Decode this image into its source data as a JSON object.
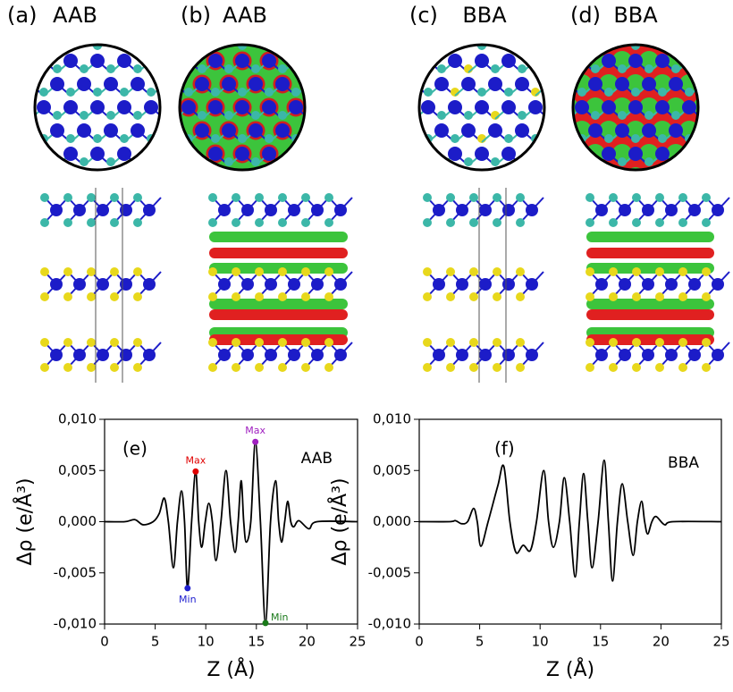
{
  "panels": [
    {
      "label": "(a)",
      "title": "AAB"
    },
    {
      "label": "(b)",
      "title": "AAB"
    },
    {
      "label": "(c)",
      "title": "BBA"
    },
    {
      "label": "(d)",
      "title": "BBA"
    }
  ],
  "chart_data": [
    {
      "type": "line",
      "panel_label": "(e)",
      "annotation": "AAB",
      "xlabel": "Z (Å)",
      "ylabel": "Δρ (e/Å³)",
      "xlim": [
        0,
        25
      ],
      "xticks": [
        0,
        5,
        10,
        15,
        20,
        25
      ],
      "ylim": [
        -0.01,
        0.01
      ],
      "yticks": [
        {
          "value": -0.01,
          "label": "-0,010"
        },
        {
          "value": -0.005,
          "label": "-0,005"
        },
        {
          "value": 0,
          "label": "0,000"
        },
        {
          "value": 0.005,
          "label": "0,005"
        },
        {
          "value": 0.01,
          "label": "0,010"
        }
      ],
      "x": [
        0,
        2,
        3,
        3.8,
        4.8,
        5.4,
        5.9,
        6.3,
        6.8,
        7.2,
        7.6,
        7.9,
        8.2,
        8.6,
        9.0,
        9.3,
        9.6,
        9.95,
        10.3,
        10.65,
        11.0,
        11.5,
        12.0,
        12.45,
        12.9,
        13.2,
        13.5,
        13.75,
        14.0,
        14.45,
        14.9,
        15.4,
        15.9,
        16.4,
        16.9,
        17.2,
        17.5,
        17.8,
        18.1,
        18.4,
        18.7,
        19.2,
        20.2,
        21,
        25
      ],
      "values": [
        0,
        0,
        0.0002,
        -0.0003,
        0,
        0.0008,
        0.0023,
        0,
        -0.0045,
        0,
        0.003,
        0,
        -0.0065,
        0,
        0.0049,
        0,
        -0.0025,
        0,
        0.0018,
        0,
        -0.0038,
        0,
        0.005,
        0,
        -0.003,
        0,
        0.004,
        0,
        -0.002,
        0,
        0.0078,
        0,
        -0.0099,
        0,
        0.004,
        0,
        -0.002,
        0,
        0.002,
        0,
        -0.0005,
        0.0001,
        -0.0007,
        0,
        0
      ],
      "color": "#000000",
      "markers": [
        {
          "label": "Min",
          "x": 8.2,
          "y": -0.0065,
          "color": "#2020d0",
          "position": "below"
        },
        {
          "label": "Max",
          "x": 9.0,
          "y": 0.0049,
          "color": "#e00000",
          "position": "above"
        },
        {
          "label": "Max",
          "x": 14.9,
          "y": 0.0078,
          "color": "#a020c0",
          "position": "above"
        },
        {
          "label": "Min",
          "x": 15.9,
          "y": -0.0099,
          "color": "#1a7a1a",
          "position": "right"
        }
      ]
    },
    {
      "type": "line",
      "panel_label": "(f)",
      "annotation": "BBA",
      "xlabel": "Z (Å)",
      "ylabel": "Δρ (e/Å³)",
      "xlim": [
        0,
        25
      ],
      "xticks": [
        0,
        5,
        10,
        15,
        20,
        25
      ],
      "ylim": [
        -0.01,
        0.01
      ],
      "yticks": [
        {
          "value": -0.01,
          "label": "-0,010"
        },
        {
          "value": -0.005,
          "label": "-0,005"
        },
        {
          "value": 0,
          "label": "0,000"
        },
        {
          "value": 0.005,
          "label": "0,005"
        },
        {
          "value": 0.01,
          "label": "0,010"
        }
      ],
      "x": [
        0,
        2.5,
        3,
        3.5,
        4.0,
        4.5,
        4.8,
        5.1,
        5.7,
        6.5,
        7.0,
        7.5,
        8.0,
        8.6,
        9.2,
        9.7,
        10.3,
        10.7,
        11.1,
        11.6,
        12.0,
        12.45,
        12.9,
        13.25,
        13.6,
        13.95,
        14.3,
        14.8,
        15.3,
        15.65,
        16.0,
        16.4,
        16.8,
        17.25,
        17.7,
        18.05,
        18.4,
        18.65,
        18.9,
        19.25,
        19.6,
        20.3,
        21,
        25
      ],
      "values": [
        0,
        0,
        0.0001,
        -0.0002,
        0,
        0.0013,
        0,
        -0.0024,
        0,
        0.0035,
        0.0054,
        0,
        -0.003,
        -0.0023,
        -0.0028,
        0,
        0.005,
        0,
        -0.0025,
        0,
        0.0043,
        0,
        -0.0054,
        0,
        0.0047,
        0,
        -0.0045,
        0,
        0.006,
        0,
        -0.0058,
        0,
        0.0037,
        0,
        -0.0033,
        0,
        0.002,
        0,
        -0.0012,
        0,
        0.0005,
        -0.0003,
        0,
        0
      ],
      "color": "#000000"
    }
  ]
}
